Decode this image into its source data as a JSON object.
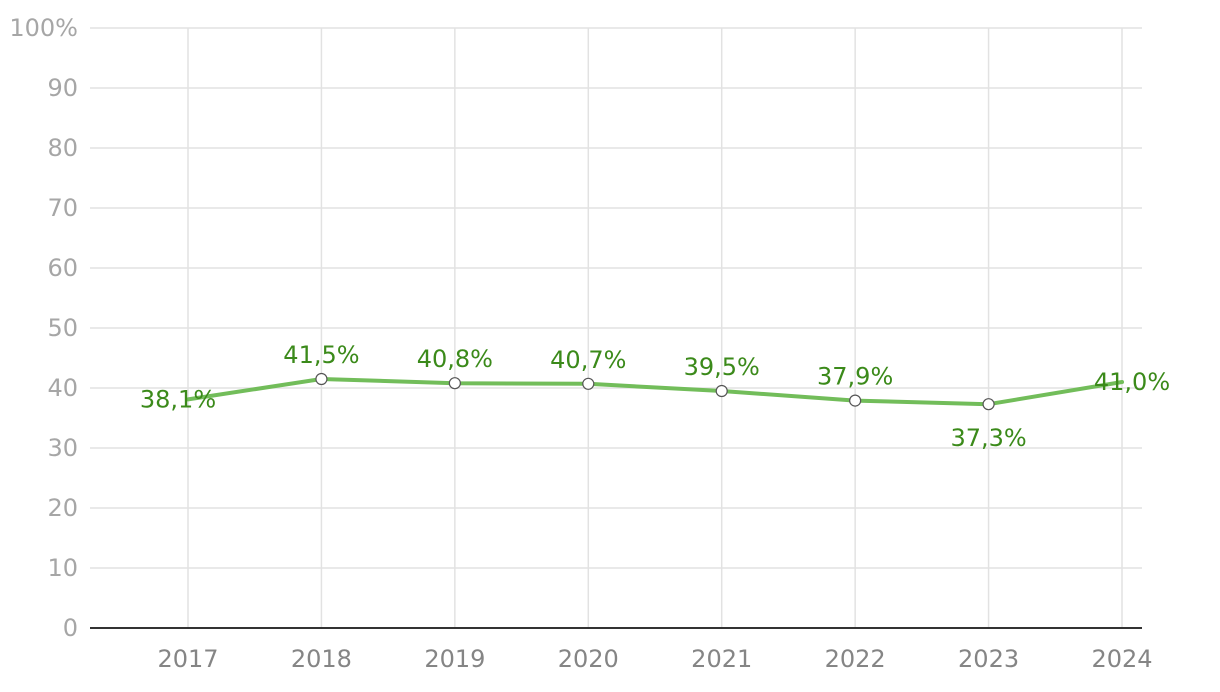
{
  "chart_data": {
    "type": "line",
    "x": [
      "2017",
      "2018",
      "2019",
      "2020",
      "2021",
      "2022",
      "2023",
      "2024"
    ],
    "series": [
      {
        "values": [
          38.1,
          41.5,
          40.8,
          40.7,
          39.5,
          37.9,
          37.3,
          41.0
        ],
        "labels": [
          "38,1%",
          "41,5%",
          "40,8%",
          "40,7%",
          "39,5%",
          "37,9%",
          "37,3%",
          "41,0%"
        ]
      }
    ],
    "ylim": [
      0,
      100
    ],
    "yticks": [
      {
        "value": 0,
        "label": "0"
      },
      {
        "value": 10,
        "label": "10"
      },
      {
        "value": 20,
        "label": "20"
      },
      {
        "value": 30,
        "label": "30"
      },
      {
        "value": 40,
        "label": "40"
      },
      {
        "value": 50,
        "label": "50"
      },
      {
        "value": 60,
        "label": "60"
      },
      {
        "value": 70,
        "label": "70"
      },
      {
        "value": 80,
        "label": "80"
      },
      {
        "value": 90,
        "label": "90"
      },
      {
        "value": 100,
        "label": "100%"
      }
    ],
    "grid": true,
    "legend": "none",
    "colors": {
      "line": "#72bd5a",
      "label": "#3b8a1a",
      "marker": "#555555"
    }
  }
}
